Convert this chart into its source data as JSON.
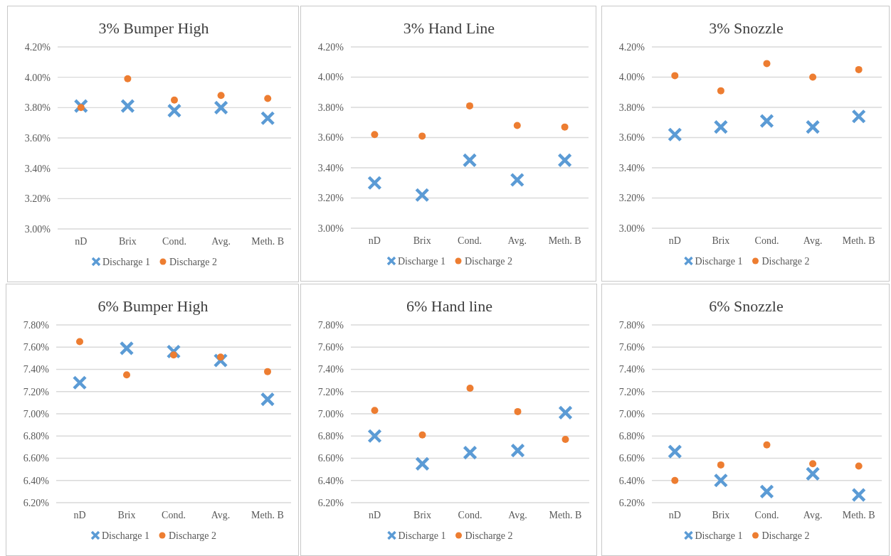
{
  "chart_data": [
    {
      "type": "scatter",
      "title": "3% Bumper High",
      "categories": [
        "nD",
        "Brix",
        "Cond.",
        "Avg.",
        "Meth. B"
      ],
      "ylim": [
        3.0,
        4.2
      ],
      "yticks": [
        {
          "value": 3.0,
          "label": "3.00%"
        },
        {
          "value": 3.2,
          "label": "3.20%"
        },
        {
          "value": 3.4,
          "label": "3.40%"
        },
        {
          "value": 3.6,
          "label": "3.60%"
        },
        {
          "value": 3.8,
          "label": "3.80%"
        },
        {
          "value": 4.0,
          "label": "4.00%"
        },
        {
          "value": 4.2,
          "label": "4.20%"
        }
      ],
      "grid": "y",
      "legend": "bottom",
      "series": [
        {
          "name": "Discharge 1",
          "color": "#5b9bd5",
          "marker": "cross",
          "values": [
            3.81,
            3.81,
            3.78,
            3.8,
            3.73
          ]
        },
        {
          "name": "Discharge 2",
          "color": "#ed7d31",
          "marker": "circle",
          "values": [
            3.8,
            3.99,
            3.85,
            3.88,
            3.86
          ]
        }
      ]
    },
    {
      "type": "scatter",
      "title": "3% Hand Line",
      "categories": [
        "nD",
        "Brix",
        "Cond.",
        "Avg.",
        "Meth. B"
      ],
      "ylim": [
        3.0,
        4.2
      ],
      "yticks": [
        {
          "value": 3.0,
          "label": "3.00%"
        },
        {
          "value": 3.2,
          "label": "3.20%"
        },
        {
          "value": 3.4,
          "label": "3.40%"
        },
        {
          "value": 3.6,
          "label": "3.60%"
        },
        {
          "value": 3.8,
          "label": "3.80%"
        },
        {
          "value": 4.0,
          "label": "4.00%"
        },
        {
          "value": 4.2,
          "label": "4.20%"
        }
      ],
      "grid": "y",
      "legend": "bottom",
      "series": [
        {
          "name": "Discharge 1",
          "color": "#5b9bd5",
          "marker": "cross",
          "values": [
            3.3,
            3.22,
            3.45,
            3.32,
            3.45
          ]
        },
        {
          "name": "Discharge 2",
          "color": "#ed7d31",
          "marker": "circle",
          "values": [
            3.62,
            3.61,
            3.81,
            3.68,
            3.67
          ]
        }
      ]
    },
    {
      "type": "scatter",
      "title": "3% Snozzle",
      "categories": [
        "nD",
        "Brix",
        "Cond.",
        "Avg.",
        "Meth. B"
      ],
      "ylim": [
        3.0,
        4.2
      ],
      "yticks": [
        {
          "value": 3.0,
          "label": "3.00%"
        },
        {
          "value": 3.2,
          "label": "3.20%"
        },
        {
          "value": 3.4,
          "label": "3.40%"
        },
        {
          "value": 3.6,
          "label": "3.60%"
        },
        {
          "value": 3.8,
          "label": "3.80%"
        },
        {
          "value": 4.0,
          "label": "4.00%"
        },
        {
          "value": 4.2,
          "label": "4.20%"
        }
      ],
      "grid": "y",
      "legend": "bottom",
      "series": [
        {
          "name": "Discharge 1",
          "color": "#5b9bd5",
          "marker": "cross",
          "values": [
            3.62,
            3.67,
            3.71,
            3.67,
            3.74
          ]
        },
        {
          "name": "Discharge 2",
          "color": "#ed7d31",
          "marker": "circle",
          "values": [
            4.01,
            3.91,
            4.09,
            4.0,
            4.05
          ]
        }
      ]
    },
    {
      "type": "scatter",
      "title": "6% Bumper High",
      "categories": [
        "nD",
        "Brix",
        "Cond.",
        "Avg.",
        "Meth. B"
      ],
      "ylim": [
        6.2,
        7.8
      ],
      "yticks": [
        {
          "value": 6.2,
          "label": "6.20%"
        },
        {
          "value": 6.4,
          "label": "6.40%"
        },
        {
          "value": 6.6,
          "label": "6.60%"
        },
        {
          "value": 6.8,
          "label": "6.80%"
        },
        {
          "value": 7.0,
          "label": "7.00%"
        },
        {
          "value": 7.2,
          "label": "7.20%"
        },
        {
          "value": 7.4,
          "label": "7.40%"
        },
        {
          "value": 7.6,
          "label": "7.60%"
        },
        {
          "value": 7.8,
          "label": "7.80%"
        }
      ],
      "grid": "y",
      "legend": "bottom",
      "series": [
        {
          "name": "Discharge 1",
          "color": "#5b9bd5",
          "marker": "cross",
          "values": [
            7.28,
            7.59,
            7.56,
            7.48,
            7.13
          ]
        },
        {
          "name": "Discharge 2",
          "color": "#ed7d31",
          "marker": "circle",
          "values": [
            7.65,
            7.35,
            7.53,
            7.51,
            7.38
          ]
        }
      ]
    },
    {
      "type": "scatter",
      "title": "6% Hand line",
      "categories": [
        "nD",
        "Brix",
        "Cond.",
        "Avg.",
        "Meth. B"
      ],
      "ylim": [
        6.2,
        7.8
      ],
      "yticks": [
        {
          "value": 6.2,
          "label": "6.20%"
        },
        {
          "value": 6.4,
          "label": "6.40%"
        },
        {
          "value": 6.6,
          "label": "6.60%"
        },
        {
          "value": 6.8,
          "label": "6.80%"
        },
        {
          "value": 7.0,
          "label": "7.00%"
        },
        {
          "value": 7.2,
          "label": "7.20%"
        },
        {
          "value": 7.4,
          "label": "7.40%"
        },
        {
          "value": 7.6,
          "label": "7.60%"
        },
        {
          "value": 7.8,
          "label": "7.80%"
        }
      ],
      "grid": "y",
      "legend": "bottom",
      "series": [
        {
          "name": "Discharge 1",
          "color": "#5b9bd5",
          "marker": "cross",
          "values": [
            6.8,
            6.55,
            6.65,
            6.67,
            7.01
          ]
        },
        {
          "name": "Discharge 2",
          "color": "#ed7d31",
          "marker": "circle",
          "values": [
            7.03,
            6.81,
            7.23,
            7.02,
            6.77
          ]
        }
      ]
    },
    {
      "type": "scatter",
      "title": "6% Snozzle",
      "categories": [
        "nD",
        "Brix",
        "Cond.",
        "Avg.",
        "Meth. B"
      ],
      "ylim": [
        6.2,
        7.8
      ],
      "yticks": [
        {
          "value": 6.2,
          "label": "6.20%"
        },
        {
          "value": 6.4,
          "label": "6.40%"
        },
        {
          "value": 6.6,
          "label": "6.60%"
        },
        {
          "value": 6.8,
          "label": "6.80%"
        },
        {
          "value": 7.0,
          "label": "7.00%"
        },
        {
          "value": 7.2,
          "label": "7.20%"
        },
        {
          "value": 7.4,
          "label": "7.40%"
        },
        {
          "value": 7.6,
          "label": "7.60%"
        },
        {
          "value": 7.8,
          "label": "7.80%"
        }
      ],
      "grid": "y",
      "legend": "bottom",
      "series": [
        {
          "name": "Discharge 1",
          "color": "#5b9bd5",
          "marker": "cross",
          "values": [
            6.66,
            6.4,
            6.3,
            6.46,
            6.27
          ]
        },
        {
          "name": "Discharge 2",
          "color": "#ed7d31",
          "marker": "circle",
          "values": [
            6.4,
            6.54,
            6.72,
            6.55,
            6.53
          ]
        }
      ]
    }
  ]
}
